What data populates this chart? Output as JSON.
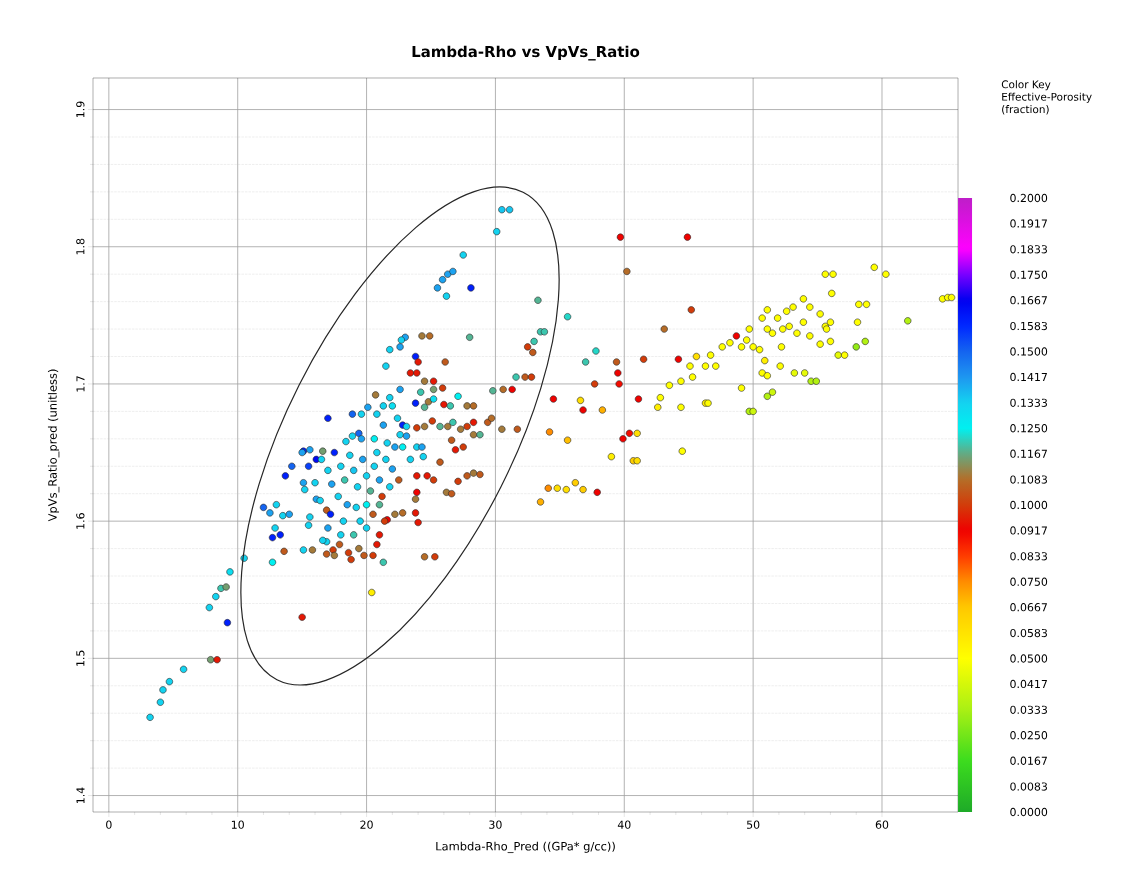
{
  "chart_data": {
    "type": "scatter",
    "title": "Lambda-Rho vs VpVs_Ratio",
    "xlabel": "Lambda-Rho_Pred ((GPa* g/cc))",
    "ylabel": "VpVs_Ratio_pred (unitless)",
    "clabel": "Color Key Effective-Porosity (fraction)",
    "x": [
      3.2,
      4.0,
      4.2,
      4.7,
      5.8,
      7.9,
      8.4,
      9.2,
      7.8,
      8.3,
      8.7,
      9.1,
      9.4,
      10.5,
      12.7,
      13.6,
      15.0,
      17.0,
      12.0,
      12.5,
      13.0,
      13.5,
      12.9,
      13.3,
      14.0,
      12.7,
      13.7,
      14.2,
      15.1,
      15.6,
      16.1,
      16.6,
      15.1,
      15.2,
      16.1,
      15.6,
      15.5,
      16.9,
      15.1,
      15.8,
      16.9,
      17.4,
      16.9,
      30.5,
      31.1,
      30.1,
      27.5,
      25.5,
      25.9,
      26.3,
      26.7,
      26.2,
      28.1,
      33.3,
      33.5,
      33.8,
      33.0,
      32.5,
      32.9,
      32.3,
      32.8,
      31.6,
      28.0,
      24.3,
      24.9,
      21.8,
      22.6,
      23.0,
      22.7,
      21.5,
      23.8,
      24.0,
      23.4,
      23.9,
      26.1,
      24.5,
      25.2,
      25.9,
      25.2,
      29.8,
      30.6,
      31.3,
      34.5,
      20.7,
      22.6,
      21.8,
      21.3,
      22.0,
      23.8,
      24.2,
      24.8,
      25.2,
      24.5,
      26.0,
      26.5,
      27.1,
      27.8,
      28.3,
      20.1,
      19.6,
      18.9,
      20.8,
      21.3,
      22.4,
      22.8,
      23.1,
      18.9,
      19.4,
      23.9,
      24.5,
      25.1,
      25.7,
      26.3,
      26.7,
      27.3,
      27.8,
      28.3,
      28.3,
      28.8,
      29.4,
      29.7,
      30.5,
      31.7,
      34.2,
      22.6,
      23.1,
      21.6,
      22.2,
      22.8,
      23.9,
      24.3,
      24.4,
      23.4,
      26.6,
      26.9,
      27.5,
      25.7,
      23.9,
      24.7,
      25.2,
      23.9,
      23.8,
      27.1,
      27.8,
      28.3,
      28.8,
      26.2,
      26.6,
      33.5,
      34.1,
      34.8,
      21.6,
      22.2,
      22.8,
      23.8,
      24.0,
      20.8,
      21.4,
      24.5,
      25.3,
      20.4,
      21.3,
      15.0,
      15.5,
      16.0,
      16.5,
      17.0,
      17.5,
      17.3,
      18.0,
      18.3,
      18.7,
      19.0,
      19.3,
      19.7,
      20.0,
      20.3,
      17.8,
      18.5,
      19.2,
      20.0,
      20.6,
      21.0,
      21.2,
      20.8,
      19.5,
      18.2,
      17.2,
      16.4,
      17.0,
      18.0,
      19.0,
      20.0,
      20.5,
      19.4,
      18.6,
      17.9,
      16.6,
      20.6,
      19.6,
      18.4,
      21.5,
      22.0,
      21.8,
      22.5,
      21.0,
      19.8,
      18.8,
      17.5,
      20.5,
      21.0,
      39.7,
      44.9,
      40.2,
      35.6,
      45.2,
      43.1,
      37.8,
      37.0,
      39.4,
      39.5,
      39.6,
      37.7,
      41.5,
      44.2,
      36.8,
      36.6,
      38.3,
      41.1,
      35.6,
      39.9,
      40.4,
      41.0,
      39.0,
      40.7,
      41.0,
      44.5,
      35.5,
      36.2,
      36.8,
      37.9,
      42.6,
      42.8,
      43.5,
      44.4,
      44.4,
      45.3,
      45.1,
      45.6,
      46.3,
      46.7,
      47.1,
      46.3,
      46.5,
      47.6,
      48.2,
      48.7,
      49.1,
      49.5,
      49.7,
      50.0,
      49.1,
      49.7,
      50.0,
      50.7,
      51.1,
      51.9,
      52.6,
      53.1,
      53.9,
      54.4,
      55.2,
      55.6,
      56.0,
      55.7,
      53.9,
      51.1,
      51.5,
      52.3,
      52.8,
      53.4,
      54.4,
      55.2,
      56.0,
      50.5,
      52.2,
      50.9,
      52.1,
      50.7,
      51.1,
      53.2,
      54.0,
      54.5,
      54.9,
      51.1,
      51.5,
      56.6,
      57.1,
      55.6,
      56.2,
      56.1,
      58.2,
      58.8,
      58.1,
      58.7,
      58.0,
      59.4,
      60.3,
      62.0,
      64.7,
      65.1,
      65.4
    ],
    "values": [
      1.457,
      1.468,
      1.477,
      1.483,
      1.492,
      1.499,
      1.499,
      1.526,
      1.537,
      1.545,
      1.551,
      1.552,
      1.563,
      1.573,
      1.57,
      1.578,
      1.53,
      1.675,
      1.61,
      1.606,
      1.612,
      1.604,
      1.595,
      1.59,
      1.605,
      1.588,
      1.633,
      1.64,
      1.651,
      1.652,
      1.645,
      1.651,
      1.628,
      1.623,
      1.616,
      1.603,
      1.597,
      1.608,
      1.579,
      1.579,
      1.576,
      1.579,
      1.585,
      1.827,
      1.827,
      1.811,
      1.794,
      1.77,
      1.776,
      1.78,
      1.782,
      1.764,
      1.77,
      1.761,
      1.738,
      1.738,
      1.731,
      1.727,
      1.723,
      1.705,
      1.705,
      1.705,
      1.734,
      1.735,
      1.735,
      1.725,
      1.727,
      1.734,
      1.732,
      1.713,
      1.72,
      1.716,
      1.708,
      1.708,
      1.716,
      1.702,
      1.702,
      1.697,
      1.696,
      1.695,
      1.696,
      1.696,
      1.689,
      1.692,
      1.696,
      1.69,
      1.684,
      1.684,
      1.686,
      1.694,
      1.687,
      1.689,
      1.683,
      1.685,
      1.684,
      1.691,
      1.684,
      1.684,
      1.683,
      1.678,
      1.678,
      1.678,
      1.67,
      1.675,
      1.67,
      1.669,
      1.662,
      1.664,
      1.668,
      1.669,
      1.673,
      1.669,
      1.669,
      1.672,
      1.667,
      1.669,
      1.672,
      1.663,
      1.663,
      1.672,
      1.675,
      1.667,
      1.667,
      1.665,
      1.663,
      1.662,
      1.657,
      1.654,
      1.654,
      1.654,
      1.654,
      1.647,
      1.645,
      1.659,
      1.652,
      1.654,
      1.643,
      1.633,
      1.633,
      1.63,
      1.621,
      1.616,
      1.629,
      1.633,
      1.635,
      1.634,
      1.621,
      1.62,
      1.614,
      1.624,
      1.624,
      1.601,
      1.605,
      1.606,
      1.606,
      1.599,
      1.583,
      1.6,
      1.574,
      1.574,
      1.548,
      1.57,
      1.65,
      1.64,
      1.628,
      1.645,
      1.637,
      1.65,
      1.627,
      1.64,
      1.63,
      1.648,
      1.637,
      1.625,
      1.645,
      1.633,
      1.622,
      1.618,
      1.612,
      1.61,
      1.612,
      1.64,
      1.63,
      1.618,
      1.65,
      1.6,
      1.6,
      1.605,
      1.615,
      1.595,
      1.59,
      1.59,
      1.595,
      1.605,
      1.58,
      1.577,
      1.583,
      1.586,
      1.66,
      1.66,
      1.658,
      1.645,
      1.638,
      1.625,
      1.63,
      1.612,
      1.575,
      1.572,
      1.575,
      1.575,
      1.59,
      1.807,
      1.807,
      1.782,
      1.749,
      1.754,
      1.74,
      1.724,
      1.716,
      1.716,
      1.708,
      1.7,
      1.7,
      1.718,
      1.718,
      1.681,
      1.688,
      1.681,
      1.689,
      1.659,
      1.66,
      1.664,
      1.664,
      1.647,
      1.644,
      1.644,
      1.651,
      1.623,
      1.628,
      1.623,
      1.621,
      1.683,
      1.69,
      1.699,
      1.683,
      1.702,
      1.705,
      1.713,
      1.72,
      1.713,
      1.721,
      1.713,
      1.686,
      1.686,
      1.727,
      1.73,
      1.735,
      1.727,
      1.732,
      1.74,
      1.727,
      1.697,
      1.68,
      1.68,
      1.748,
      1.754,
      1.748,
      1.753,
      1.756,
      1.762,
      1.756,
      1.751,
      1.742,
      1.745,
      1.74,
      1.745,
      1.74,
      1.737,
      1.74,
      1.742,
      1.737,
      1.735,
      1.729,
      1.731,
      1.725,
      1.727,
      1.717,
      1.713,
      1.708,
      1.706,
      1.708,
      1.708,
      1.702,
      1.702,
      1.691,
      1.694,
      1.721,
      1.721,
      1.78,
      1.78,
      1.766,
      1.758,
      1.758,
      1.745,
      1.731,
      1.727,
      1.785,
      1.78,
      1.746,
      1.762,
      1.763,
      1.763
    ],
    "cvalues": [
      0.133,
      0.133,
      0.133,
      0.133,
      0.133,
      0.115,
      0.095,
      0.16,
      0.133,
      0.133,
      0.12,
      0.115,
      0.13,
      0.133,
      0.125,
      0.105,
      0.095,
      0.16,
      0.15,
      0.14,
      0.133,
      0.133,
      0.133,
      0.16,
      0.14,
      0.16,
      0.16,
      0.15,
      0.16,
      0.14,
      0.165,
      0.115,
      0.14,
      0.133,
      0.14,
      0.133,
      0.133,
      0.105,
      0.133,
      0.11,
      0.105,
      0.1,
      0.133,
      0.135,
      0.135,
      0.133,
      0.133,
      0.14,
      0.14,
      0.14,
      0.14,
      0.133,
      0.16,
      0.118,
      0.12,
      0.12,
      0.12,
      0.1,
      0.105,
      0.105,
      0.1,
      0.12,
      0.118,
      0.11,
      0.108,
      0.133,
      0.14,
      0.14,
      0.133,
      0.133,
      0.16,
      0.095,
      0.095,
      0.095,
      0.105,
      0.11,
      0.095,
      0.1,
      0.115,
      0.118,
      0.108,
      0.092,
      0.092,
      0.11,
      0.14,
      0.133,
      0.133,
      0.13,
      0.16,
      0.12,
      0.11,
      0.13,
      0.118,
      0.095,
      0.12,
      0.125,
      0.11,
      0.108,
      0.14,
      0.133,
      0.15,
      0.133,
      0.14,
      0.133,
      0.16,
      0.133,
      0.133,
      0.15,
      0.1,
      0.11,
      0.1,
      0.118,
      0.11,
      0.12,
      0.11,
      0.1,
      0.095,
      0.11,
      0.118,
      0.105,
      0.108,
      0.11,
      0.105,
      0.075,
      0.133,
      0.14,
      0.133,
      0.14,
      0.125,
      0.133,
      0.14,
      0.133,
      0.133,
      0.105,
      0.095,
      0.1,
      0.105,
      0.095,
      0.095,
      0.1,
      0.092,
      0.11,
      0.1,
      0.105,
      0.11,
      0.105,
      0.11,
      0.105,
      0.07,
      0.075,
      0.06,
      0.092,
      0.11,
      0.108,
      0.095,
      0.095,
      0.095,
      0.1,
      0.108,
      0.1,
      0.055,
      0.12,
      0.14,
      0.155,
      0.133,
      0.133,
      0.133,
      0.16,
      0.14,
      0.133,
      0.12,
      0.133,
      0.135,
      0.133,
      0.14,
      0.133,
      0.118,
      0.133,
      0.14,
      0.133,
      0.125,
      0.133,
      0.14,
      0.1,
      0.133,
      0.133,
      0.133,
      0.16,
      0.133,
      0.14,
      0.133,
      0.12,
      0.133,
      0.105,
      0.11,
      0.1,
      0.105,
      0.133,
      0.125,
      0.14,
      0.133,
      0.133,
      0.14,
      0.133,
      0.105,
      0.118,
      0.105,
      0.1,
      0.11,
      0.1,
      0.095,
      0.092,
      0.092,
      0.108,
      0.122,
      0.1,
      0.108,
      0.122,
      0.12,
      0.105,
      0.092,
      0.09,
      0.1,
      0.1,
      0.092,
      0.092,
      0.06,
      0.07,
      0.092,
      0.068,
      0.092,
      0.09,
      0.06,
      0.055,
      0.065,
      0.06,
      0.05,
      0.06,
      0.065,
      0.065,
      0.092,
      0.055,
      0.05,
      0.05,
      0.05,
      0.05,
      0.05,
      0.05,
      0.06,
      0.05,
      0.05,
      0.05,
      0.055,
      0.05,
      0.05,
      0.05,
      0.092,
      0.05,
      0.05,
      0.05,
      0.05,
      0.05,
      0.035,
      0.04,
      0.05,
      0.05,
      0.05,
      0.05,
      0.05,
      0.05,
      0.05,
      0.05,
      0.05,
      0.05,
      0.05,
      0.05,
      0.05,
      0.05,
      0.05,
      0.05,
      0.05,
      0.05,
      0.05,
      0.05,
      0.05,
      0.05,
      0.055,
      0.05,
      0.05,
      0.05,
      0.045,
      0.045,
      0.035,
      0.035,
      0.035,
      0.04,
      0.045,
      0.05,
      0.05,
      0.05,
      0.05,
      0.05,
      0.05,
      0.05,
      0.035,
      0.03,
      0.05,
      0.05,
      0.035,
      0.05,
      0.05,
      0.05
    ],
    "xlim": [
      -1.23,
      65.9
    ],
    "ylim": [
      1.388,
      1.923
    ],
    "xticks": [
      0,
      10,
      20,
      30,
      40,
      50,
      60
    ],
    "yticks": [
      1.4,
      1.5,
      1.6,
      1.7,
      1.8,
      1.9
    ],
    "clim": [
      0,
      0.2
    ],
    "cticks": [
      {
        "value": 0,
        "label": "0.0000"
      },
      {
        "value": 0.0083,
        "label": "0.0083"
      },
      {
        "value": 0.0167,
        "label": "0.0167"
      },
      {
        "value": 0.025,
        "label": "0.0250"
      },
      {
        "value": 0.0333,
        "label": "0.0333"
      },
      {
        "value": 0.0417,
        "label": "0.0417"
      },
      {
        "value": 0.05,
        "label": "0.0500"
      },
      {
        "value": 0.0583,
        "label": "0.0583"
      },
      {
        "value": 0.0667,
        "label": "0.0667"
      },
      {
        "value": 0.075,
        "label": "0.0750"
      },
      {
        "value": 0.0833,
        "label": "0.0833"
      },
      {
        "value": 0.0917,
        "label": "0.0917"
      },
      {
        "value": 0.1,
        "label": "0.1000"
      },
      {
        "value": 0.1083,
        "label": "0.1083"
      },
      {
        "value": 0.1167,
        "label": "0.1167"
      },
      {
        "value": 0.125,
        "label": "0.1250"
      },
      {
        "value": 0.1333,
        "label": "0.1333"
      },
      {
        "value": 0.1417,
        "label": "0.1417"
      },
      {
        "value": 0.15,
        "label": "0.1500"
      },
      {
        "value": 0.1583,
        "label": "0.1583"
      },
      {
        "value": 0.1667,
        "label": "0.1667"
      },
      {
        "value": 0.175,
        "label": "0.1750"
      },
      {
        "value": 0.1833,
        "label": "0.1833"
      },
      {
        "value": 0.1917,
        "label": "0.1917"
      },
      {
        "value": 0.2,
        "label": "0.2000"
      }
    ],
    "grid": true,
    "marker": "circle"
  }
}
